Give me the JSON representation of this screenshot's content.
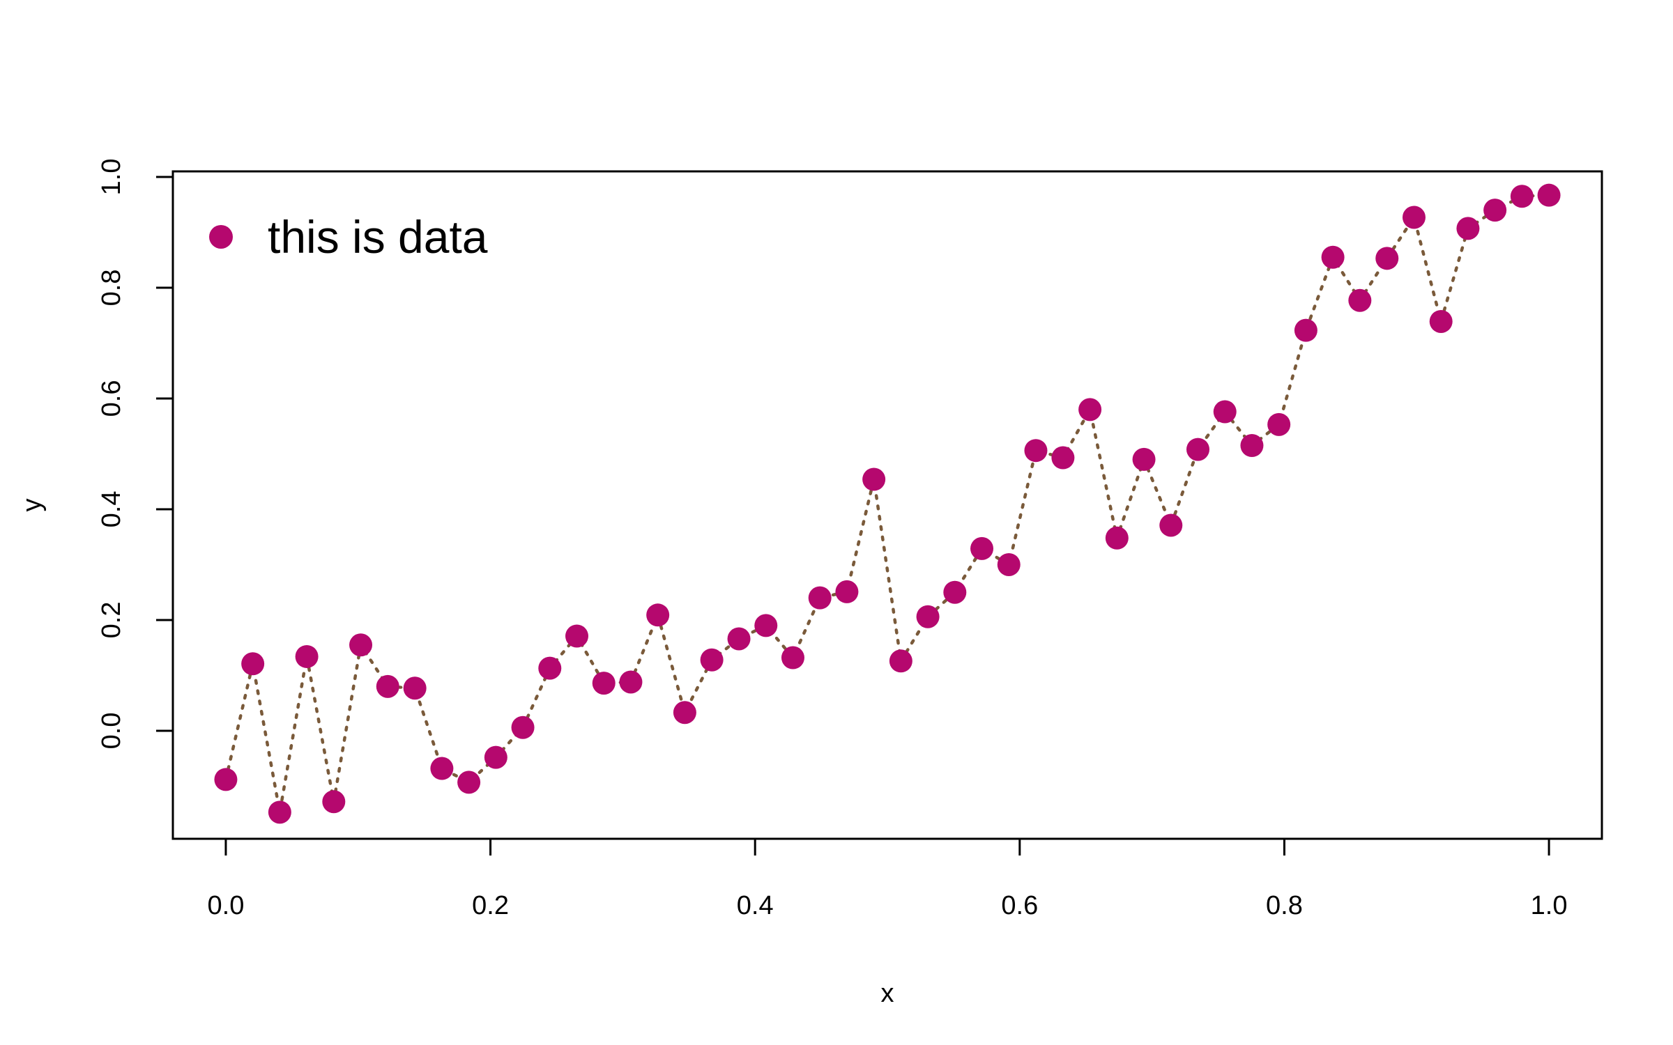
{
  "chart_data": {
    "type": "line",
    "title": "",
    "xlabel": "x",
    "ylabel": "y",
    "xlim": [
      -0.04,
      1.04
    ],
    "ylim": [
      -0.195,
      1.01
    ],
    "x_ticks": [
      0.0,
      0.2,
      0.4,
      0.6,
      0.8,
      1.0
    ],
    "x_tick_labels": [
      "0.0",
      "0.2",
      "0.4",
      "0.6",
      "0.8",
      "1.0"
    ],
    "y_ticks": [
      0.0,
      0.2,
      0.4,
      0.6,
      0.8,
      1.0
    ],
    "y_tick_labels": [
      "0.0",
      "0.2",
      "0.4",
      "0.6",
      "0.8",
      "1.0"
    ],
    "grid": false,
    "legend": {
      "position": "top-left",
      "entries": [
        "this is data"
      ]
    },
    "colors": {
      "points": "#B5086E",
      "line": "#7A5A3A",
      "axes": "#000000"
    },
    "line_style": "dotted",
    "series": [
      {
        "name": "this is data",
        "x": [
          0.0,
          0.0204,
          0.0408,
          0.0612,
          0.0816,
          0.102,
          0.1224,
          0.1429,
          0.1633,
          0.1837,
          0.2041,
          0.2245,
          0.2449,
          0.2653,
          0.2857,
          0.3061,
          0.3265,
          0.3469,
          0.3673,
          0.3878,
          0.4082,
          0.4286,
          0.449,
          0.4694,
          0.4898,
          0.5102,
          0.5306,
          0.551,
          0.5714,
          0.5918,
          0.6122,
          0.6327,
          0.6531,
          0.6735,
          0.6939,
          0.7143,
          0.7347,
          0.7551,
          0.7755,
          0.7959,
          0.8163,
          0.8367,
          0.8571,
          0.8776,
          0.898,
          0.9184,
          0.9388,
          0.9592,
          0.9796,
          1.0
        ],
        "y": [
          -0.088,
          0.121,
          -0.147,
          0.134,
          -0.128,
          0.155,
          0.08,
          0.077,
          -0.068,
          -0.093,
          -0.048,
          0.006,
          0.113,
          0.171,
          0.086,
          0.088,
          0.209,
          0.033,
          0.128,
          0.166,
          0.19,
          0.132,
          0.24,
          0.251,
          0.454,
          0.126,
          0.206,
          0.25,
          0.329,
          0.3,
          0.506,
          0.493,
          0.58,
          0.348,
          0.49,
          0.371,
          0.508,
          0.576,
          0.515,
          0.553,
          0.723,
          0.855,
          0.777,
          0.853,
          0.927,
          0.739,
          0.907,
          0.94,
          0.965,
          0.967
        ]
      }
    ]
  }
}
